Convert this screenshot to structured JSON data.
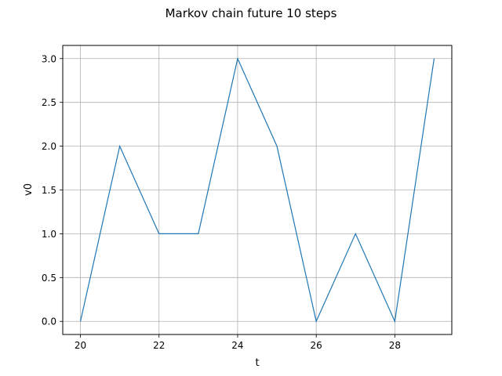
{
  "chart_data": {
    "type": "line",
    "title": "Markov chain future 10 steps",
    "xlabel": "t",
    "ylabel": "v0",
    "x": [
      20,
      21,
      22,
      23,
      24,
      25,
      26,
      27,
      28,
      29
    ],
    "series": [
      {
        "values": [
          0,
          2,
          1,
          1,
          3,
          2,
          0,
          1,
          0,
          3
        ],
        "color": "#1f77b4"
      }
    ],
    "xlim": [
      19.55,
      29.45
    ],
    "ylim": [
      -0.15,
      3.15
    ],
    "xticks": [
      "20",
      "22",
      "24",
      "26",
      "28"
    ],
    "yticks": [
      "0.0",
      "0.5",
      "1.0",
      "1.5",
      "2.0",
      "2.5",
      "3.0"
    ],
    "grid": true,
    "legend": "none"
  }
}
